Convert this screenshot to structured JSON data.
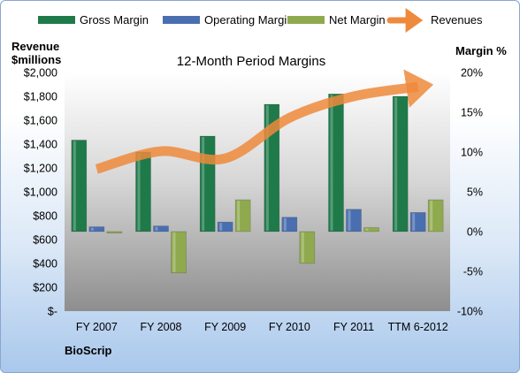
{
  "chart_data": {
    "type": "bar",
    "title": "12-Month Period Margins",
    "company": "BioScrip",
    "ylabel_left": [
      "Revenue",
      "$millions"
    ],
    "ylabel_right": "Margin %",
    "categories": [
      "FY 2007",
      "FY 2008",
      "FY 2009",
      "FY 2010",
      "FY 2011",
      "TTM 6-2012"
    ],
    "left_axis": {
      "ylim": [
        0,
        2000
      ],
      "ticks": [
        0,
        200,
        400,
        600,
        800,
        1000,
        1200,
        1400,
        1600,
        1800,
        2000
      ],
      "tick_labels": [
        "$-",
        "$200",
        "$400",
        "$600",
        "$800",
        "$1,000",
        "$1,200",
        "$1,400",
        "$1,600",
        "$1,800",
        "$2,000"
      ]
    },
    "right_axis": {
      "ylim": [
        -10,
        20
      ],
      "ticks": [
        -10,
        -5,
        0,
        5,
        10,
        15,
        20
      ],
      "tick_labels": [
        "-10%",
        "-5%",
        "0%",
        "5%",
        "10%",
        "15%",
        "20%"
      ]
    },
    "series": [
      {
        "name": "Gross Margin",
        "axis": "right",
        "color": "#1f7a4a",
        "values": [
          11.5,
          10.0,
          12.0,
          16.0,
          17.3,
          17.0
        ]
      },
      {
        "name": "Operating Margin",
        "axis": "right",
        "color": "#4a6fb0",
        "values": [
          0.6,
          0.7,
          1.2,
          1.8,
          2.8,
          2.4
        ]
      },
      {
        "name": "Net Margin",
        "axis": "right",
        "color": "#8faa4e",
        "values": [
          -0.2,
          -5.2,
          4.0,
          -4.0,
          0.5,
          4.0
        ]
      },
      {
        "name": "Revenues",
        "axis": "left",
        "color": "#ee8a3c",
        "values": [
          1190,
          1340,
          1280,
          1620,
          1800,
          1880
        ]
      }
    ],
    "legend_position": "top",
    "grid": false
  }
}
